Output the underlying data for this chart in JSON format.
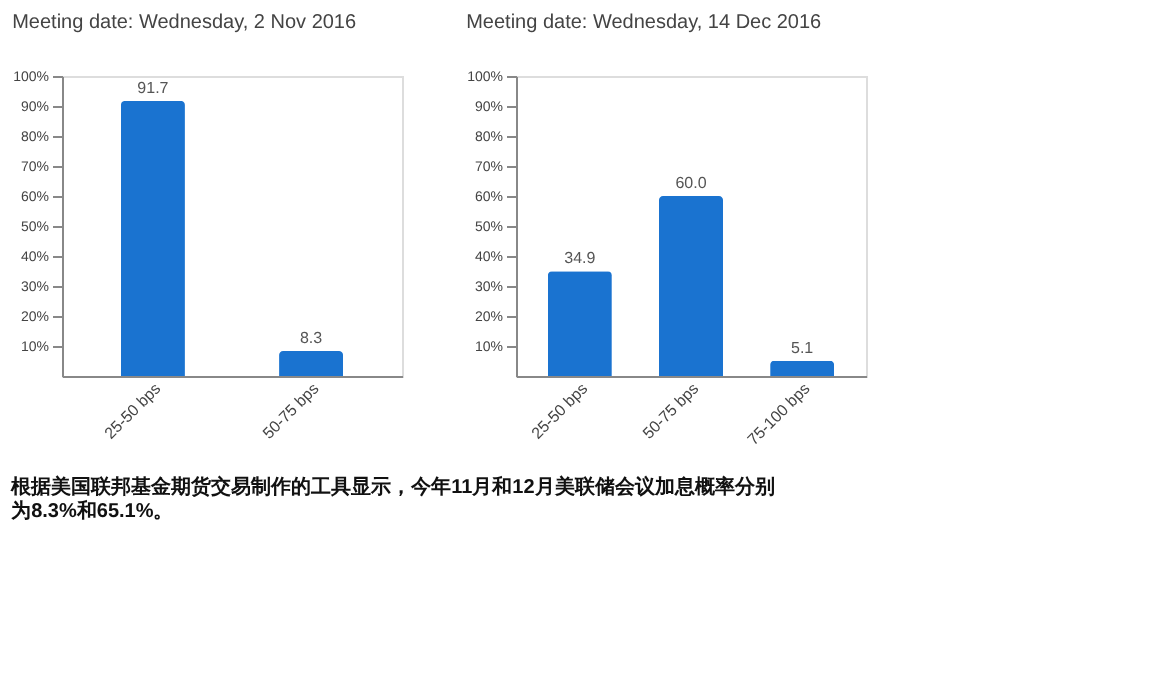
{
  "chart_data": [
    {
      "type": "bar",
      "title": "Meeting date: Wednesday, 2 Nov 2016",
      "categories": [
        "25-50 bps",
        "50-75 bps"
      ],
      "values": [
        91.7,
        8.3
      ],
      "value_labels": [
        "91.7",
        "8.3"
      ],
      "color": "#1a73d0",
      "ylim": [
        0,
        100
      ],
      "yticks": [
        {
          "value": 10,
          "label": "10%"
        },
        {
          "value": 20,
          "label": "20%"
        },
        {
          "value": 30,
          "label": "30%"
        },
        {
          "value": 40,
          "label": "40%"
        },
        {
          "value": 50,
          "label": "50%"
        },
        {
          "value": 60,
          "label": "60%"
        },
        {
          "value": 70,
          "label": "70%"
        },
        {
          "value": 80,
          "label": "80%"
        },
        {
          "value": 90,
          "label": "90%"
        },
        {
          "value": 100,
          "label": "100%"
        }
      ],
      "grid": false
    },
    {
      "type": "bar",
      "title": "Meeting date: Wednesday, 14 Dec 2016",
      "categories": [
        "25-50 bps",
        "50-75 bps",
        "75-100 bps"
      ],
      "values": [
        34.9,
        60.0,
        5.1
      ],
      "value_labels": [
        "34.9",
        "60.0",
        "5.1"
      ],
      "color": "#1a73d0",
      "ylim": [
        0,
        100
      ],
      "yticks": [
        {
          "value": 10,
          "label": "10%"
        },
        {
          "value": 20,
          "label": "20%"
        },
        {
          "value": 30,
          "label": "30%"
        },
        {
          "value": 40,
          "label": "40%"
        },
        {
          "value": 50,
          "label": "50%"
        },
        {
          "value": 60,
          "label": "60%"
        },
        {
          "value": 70,
          "label": "70%"
        },
        {
          "value": 80,
          "label": "80%"
        },
        {
          "value": 90,
          "label": "90%"
        },
        {
          "value": 100,
          "label": "100%"
        }
      ],
      "grid": false,
      "annotations": [
        "根据美国联邦基金期货交易制作的工具显示，今年11月和12月美联储会议加息概率分别为8.3%和65.1%。"
      ]
    }
  ]
}
